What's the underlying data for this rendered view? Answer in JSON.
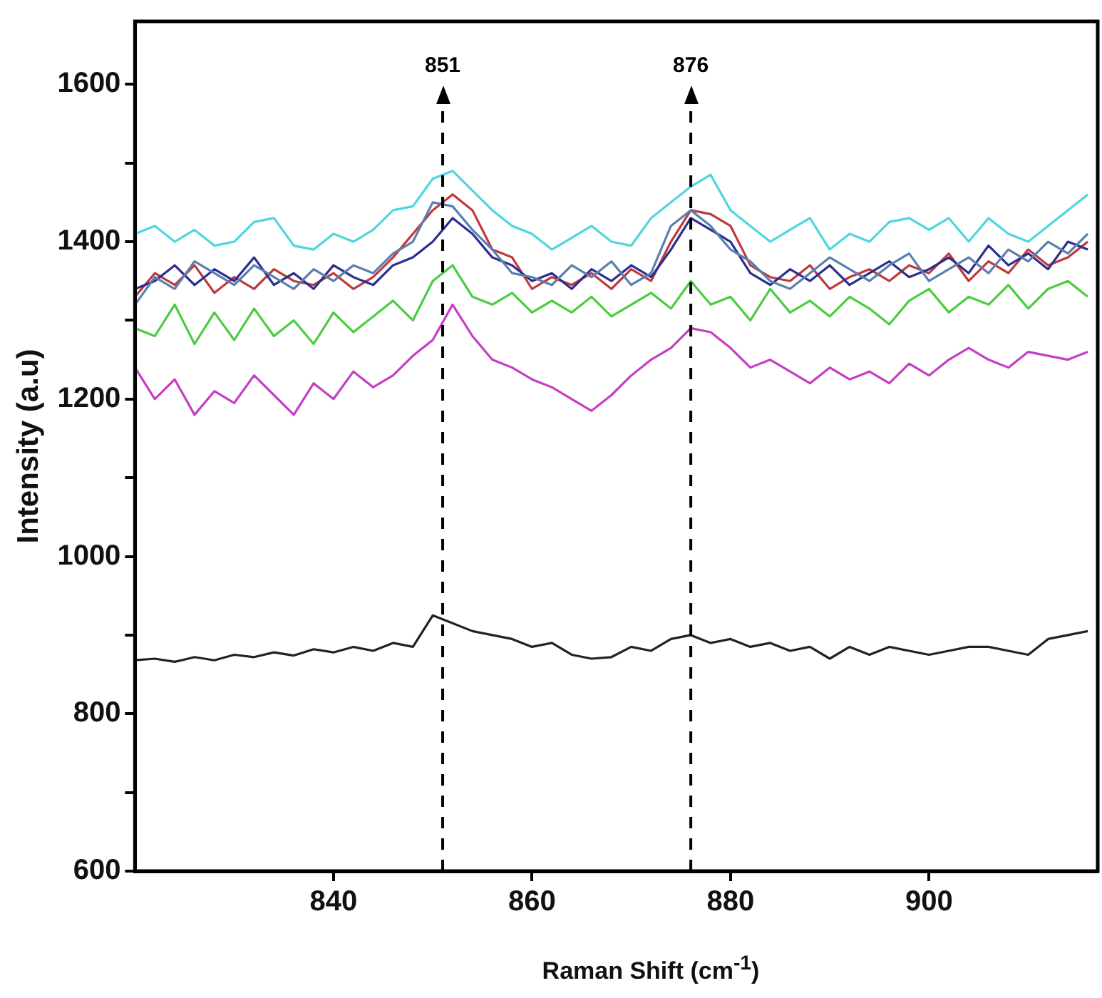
{
  "chart_data": {
    "type": "line",
    "xlabel": "Raman Shift (cm$^{-1}$)",
    "ylabel": "Intensity (a.u)",
    "x": [
      820,
      822,
      824,
      826,
      828,
      830,
      832,
      834,
      836,
      838,
      840,
      842,
      844,
      846,
      848,
      850,
      852,
      854,
      856,
      858,
      860,
      862,
      864,
      866,
      868,
      870,
      872,
      874,
      876,
      878,
      880,
      882,
      884,
      886,
      888,
      890,
      892,
      894,
      896,
      898,
      900,
      902,
      904,
      906,
      908,
      910,
      912,
      914,
      916
    ],
    "xlim": [
      820,
      917
    ],
    "xticks": [
      840,
      860,
      880,
      900
    ],
    "ylim": [
      600,
      1680
    ],
    "yticks": [
      600,
      {
        "value": 700,
        "label": null
      },
      800,
      {
        "value": 900,
        "label": null
      },
      1000,
      {
        "value": 1100,
        "label": null
      },
      1200,
      {
        "value": 1300,
        "label": null
      },
      1400,
      {
        "value": 1500,
        "label": null
      },
      1600
    ],
    "grid": false,
    "legend": false,
    "series": [
      {
        "color": "#222222",
        "values": [
          868,
          870,
          866,
          872,
          868,
          875,
          872,
          878,
          874,
          882,
          878,
          885,
          880,
          890,
          885,
          925,
          915,
          905,
          900,
          895,
          885,
          890,
          875,
          870,
          872,
          885,
          880,
          895,
          900,
          890,
          895,
          885,
          890,
          880,
          885,
          870,
          885,
          875,
          885,
          880,
          875,
          880,
          885,
          885,
          880,
          875,
          895,
          900,
          905
        ]
      },
      {
        "color": "#c43fc4",
        "values": [
          1240,
          1200,
          1225,
          1180,
          1210,
          1195,
          1230,
          1205,
          1180,
          1220,
          1200,
          1235,
          1215,
          1230,
          1255,
          1275,
          1320,
          1280,
          1250,
          1240,
          1225,
          1215,
          1200,
          1185,
          1205,
          1230,
          1250,
          1265,
          1290,
          1285,
          1265,
          1240,
          1250,
          1235,
          1220,
          1240,
          1225,
          1235,
          1220,
          1245,
          1230,
          1250,
          1265,
          1250,
          1240,
          1260,
          1255,
          1250,
          1260
        ]
      },
      {
        "color": "#4ccc40",
        "values": [
          1290,
          1280,
          1320,
          1270,
          1310,
          1275,
          1315,
          1280,
          1300,
          1270,
          1310,
          1285,
          1305,
          1325,
          1300,
          1350,
          1370,
          1330,
          1320,
          1335,
          1310,
          1325,
          1310,
          1330,
          1305,
          1320,
          1335,
          1315,
          1350,
          1320,
          1330,
          1300,
          1340,
          1310,
          1325,
          1305,
          1330,
          1315,
          1295,
          1325,
          1340,
          1310,
          1330,
          1320,
          1345,
          1315,
          1340,
          1350,
          1330
        ]
      },
      {
        "color": "#5a7fb0",
        "values": [
          1320,
          1355,
          1340,
          1375,
          1360,
          1345,
          1370,
          1355,
          1340,
          1365,
          1350,
          1370,
          1360,
          1385,
          1400,
          1450,
          1445,
          1415,
          1390,
          1360,
          1355,
          1345,
          1370,
          1355,
          1375,
          1345,
          1360,
          1420,
          1440,
          1420,
          1390,
          1375,
          1350,
          1340,
          1360,
          1380,
          1365,
          1350,
          1370,
          1385,
          1350,
          1365,
          1380,
          1360,
          1390,
          1375,
          1400,
          1385,
          1410
        ]
      },
      {
        "color": "#2b2f8f",
        "values": [
          1340,
          1350,
          1370,
          1345,
          1365,
          1350,
          1380,
          1345,
          1360,
          1340,
          1370,
          1355,
          1345,
          1370,
          1380,
          1400,
          1430,
          1410,
          1380,
          1370,
          1350,
          1360,
          1340,
          1365,
          1350,
          1370,
          1355,
          1390,
          1430,
          1415,
          1400,
          1360,
          1345,
          1365,
          1350,
          1370,
          1345,
          1360,
          1375,
          1355,
          1365,
          1380,
          1360,
          1395,
          1370,
          1385,
          1365,
          1400,
          1390
        ]
      },
      {
        "color": "#c0393b",
        "values": [
          1330,
          1360,
          1345,
          1370,
          1335,
          1355,
          1340,
          1365,
          1350,
          1345,
          1360,
          1340,
          1355,
          1380,
          1410,
          1440,
          1460,
          1440,
          1390,
          1380,
          1340,
          1355,
          1345,
          1360,
          1340,
          1365,
          1350,
          1400,
          1440,
          1435,
          1420,
          1370,
          1355,
          1350,
          1370,
          1340,
          1355,
          1365,
          1350,
          1370,
          1360,
          1385,
          1350,
          1375,
          1360,
          1390,
          1370,
          1380,
          1400
        ]
      },
      {
        "color": "#4fd6dc",
        "values": [
          1410,
          1420,
          1400,
          1415,
          1395,
          1400,
          1425,
          1430,
          1395,
          1390,
          1410,
          1400,
          1415,
          1440,
          1445,
          1480,
          1490,
          1465,
          1440,
          1420,
          1410,
          1390,
          1405,
          1420,
          1400,
          1395,
          1430,
          1450,
          1470,
          1485,
          1440,
          1420,
          1400,
          1415,
          1430,
          1390,
          1410,
          1400,
          1425,
          1430,
          1415,
          1430,
          1400,
          1430,
          1410,
          1400,
          1420,
          1440,
          1460
        ]
      }
    ],
    "ref_lines": [
      {
        "axis": "x",
        "value": 851,
        "label": "851",
        "color": "#000000",
        "line_style": "dashed"
      },
      {
        "axis": "x",
        "value": 876,
        "label": "876",
        "color": "#000000",
        "line_style": "dashed"
      }
    ]
  }
}
